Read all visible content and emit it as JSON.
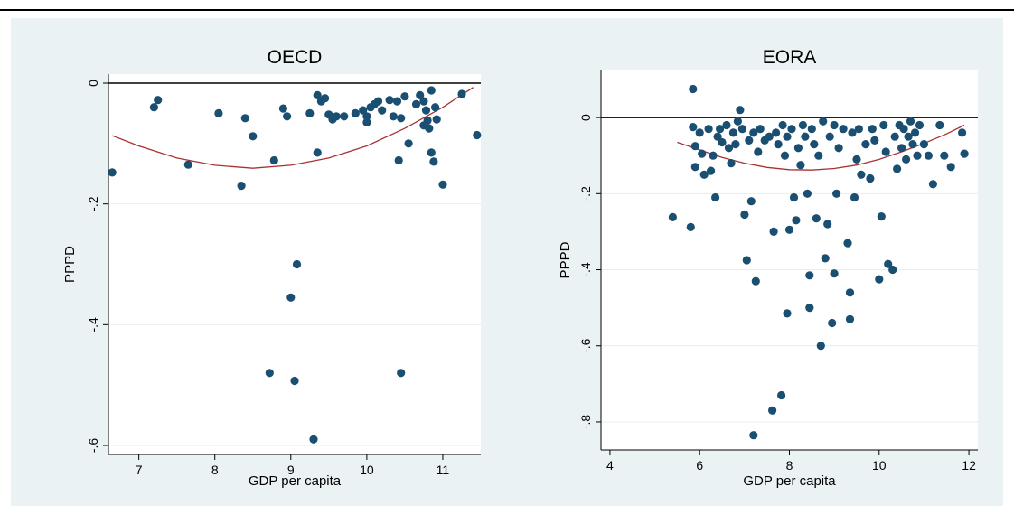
{
  "colors": {
    "marker": "#1b4f72",
    "fit": "#a83232",
    "plot_bg": "#ffffff",
    "outer_bg": "#eaf2f3",
    "grid": "#e6eef0"
  },
  "chart_data": [
    {
      "type": "scatter",
      "title": "OECD",
      "xlabel": "GDP per capita",
      "ylabel": "PPPD",
      "xlim": [
        6.6,
        11.5
      ],
      "ylim": [
        -0.6,
        0.0
      ],
      "xticks": [
        7,
        8,
        9,
        10,
        11
      ],
      "yticks": [
        0,
        -0.2,
        -0.4,
        -0.6
      ],
      "ytick_labels": [
        "0",
        "-.2",
        "-.4",
        "-.6"
      ],
      "grid": true,
      "reference_line_y": 0,
      "fit": {
        "type": "quadratic",
        "x": [
          6.65,
          7.0,
          7.5,
          8.0,
          8.5,
          9.0,
          9.5,
          10.0,
          10.5,
          11.0,
          11.4
        ],
        "y": [
          -0.087,
          -0.104,
          -0.124,
          -0.136,
          -0.141,
          -0.136,
          -0.124,
          -0.104,
          -0.075,
          -0.04,
          -0.007
        ]
      },
      "points": [
        [
          6.65,
          -0.148
        ],
        [
          7.2,
          -0.04
        ],
        [
          7.25,
          -0.028
        ],
        [
          7.65,
          -0.135
        ],
        [
          8.05,
          -0.05
        ],
        [
          8.35,
          -0.17
        ],
        [
          8.4,
          -0.058
        ],
        [
          8.5,
          -0.088
        ],
        [
          8.72,
          -0.48
        ],
        [
          8.78,
          -0.128
        ],
        [
          8.9,
          -0.042
        ],
        [
          8.95,
          -0.055
        ],
        [
          9.0,
          -0.355
        ],
        [
          9.05,
          -0.493
        ],
        [
          9.08,
          -0.3
        ],
        [
          9.25,
          -0.05
        ],
        [
          9.3,
          -0.59
        ],
        [
          9.35,
          -0.115
        ],
        [
          9.35,
          -0.02
        ],
        [
          9.4,
          -0.03
        ],
        [
          9.45,
          -0.025
        ],
        [
          9.5,
          -0.052
        ],
        [
          9.55,
          -0.06
        ],
        [
          9.6,
          -0.055
        ],
        [
          9.7,
          -0.055
        ],
        [
          9.85,
          -0.05
        ],
        [
          9.95,
          -0.045
        ],
        [
          10.0,
          -0.055
        ],
        [
          10.0,
          -0.065
        ],
        [
          10.05,
          -0.04
        ],
        [
          10.1,
          -0.035
        ],
        [
          10.15,
          -0.03
        ],
        [
          10.2,
          -0.045
        ],
        [
          10.3,
          -0.028
        ],
        [
          10.35,
          -0.055
        ],
        [
          10.4,
          -0.03
        ],
        [
          10.42,
          -0.128
        ],
        [
          10.45,
          -0.058
        ],
        [
          10.45,
          -0.48
        ],
        [
          10.5,
          -0.022
        ],
        [
          10.55,
          -0.1
        ],
        [
          10.65,
          -0.035
        ],
        [
          10.7,
          -0.02
        ],
        [
          10.75,
          -0.03
        ],
        [
          10.75,
          -0.07
        ],
        [
          10.78,
          -0.045
        ],
        [
          10.8,
          -0.062
        ],
        [
          10.82,
          -0.075
        ],
        [
          10.85,
          -0.012
        ],
        [
          10.85,
          -0.115
        ],
        [
          10.88,
          -0.13
        ],
        [
          10.9,
          -0.04
        ],
        [
          10.92,
          -0.06
        ],
        [
          11.0,
          -0.168
        ],
        [
          11.25,
          -0.018
        ],
        [
          11.45,
          -0.086
        ]
      ]
    },
    {
      "type": "scatter",
      "title": "EORA",
      "xlabel": "GDP per capita",
      "ylabel": "PPPD",
      "xlim": [
        3.8,
        12.2
      ],
      "ylim": [
        -0.85,
        0.1
      ],
      "xticks": [
        4,
        6,
        8,
        10,
        12
      ],
      "yticks": [
        0,
        -0.2,
        -0.4,
        -0.6,
        -0.8
      ],
      "ytick_labels": [
        "0",
        "-.2",
        "-.4",
        "-.6",
        "-.8"
      ],
      "grid": true,
      "reference_line_y": 0,
      "fit": {
        "type": "quadratic",
        "x": [
          5.5,
          6.0,
          6.5,
          7.0,
          7.5,
          8.0,
          8.5,
          9.0,
          9.5,
          10.0,
          10.5,
          11.0,
          11.5,
          11.9
        ],
        "y": [
          -0.065,
          -0.085,
          -0.105,
          -0.12,
          -0.131,
          -0.137,
          -0.138,
          -0.134,
          -0.125,
          -0.11,
          -0.09,
          -0.068,
          -0.043,
          -0.02
        ]
      },
      "points": [
        [
          5.85,
          0.075
        ],
        [
          5.4,
          -0.262
        ],
        [
          5.8,
          -0.288
        ],
        [
          5.85,
          -0.025
        ],
        [
          5.9,
          -0.075
        ],
        [
          5.9,
          -0.13
        ],
        [
          6.0,
          -0.04
        ],
        [
          6.05,
          -0.095
        ],
        [
          6.1,
          -0.15
        ],
        [
          6.2,
          -0.03
        ],
        [
          6.25,
          -0.14
        ],
        [
          6.3,
          -0.1
        ],
        [
          6.35,
          -0.21
        ],
        [
          6.4,
          -0.05
        ],
        [
          6.45,
          -0.03
        ],
        [
          6.5,
          -0.065
        ],
        [
          6.6,
          -0.02
        ],
        [
          6.65,
          -0.08
        ],
        [
          6.7,
          -0.12
        ],
        [
          6.75,
          -0.04
        ],
        [
          6.8,
          -0.07
        ],
        [
          6.85,
          -0.01
        ],
        [
          6.9,
          0.02
        ],
        [
          6.95,
          -0.03
        ],
        [
          7.0,
          -0.255
        ],
        [
          7.05,
          -0.375
        ],
        [
          7.1,
          -0.06
        ],
        [
          7.15,
          -0.22
        ],
        [
          7.2,
          -0.835
        ],
        [
          7.25,
          -0.43
        ],
        [
          7.2,
          -0.04
        ],
        [
          7.3,
          -0.09
        ],
        [
          7.35,
          -0.03
        ],
        [
          7.45,
          -0.06
        ],
        [
          7.55,
          -0.05
        ],
        [
          7.62,
          -0.77
        ],
        [
          7.65,
          -0.3
        ],
        [
          7.7,
          -0.04
        ],
        [
          7.75,
          -0.07
        ],
        [
          7.82,
          -0.73
        ],
        [
          7.85,
          -0.02
        ],
        [
          7.9,
          -0.1
        ],
        [
          7.95,
          -0.05
        ],
        [
          7.95,
          -0.515
        ],
        [
          8.0,
          -0.295
        ],
        [
          8.05,
          -0.03
        ],
        [
          8.1,
          -0.21
        ],
        [
          8.15,
          -0.27
        ],
        [
          8.2,
          -0.08
        ],
        [
          8.25,
          -0.125
        ],
        [
          8.3,
          -0.02
        ],
        [
          8.35,
          -0.05
        ],
        [
          8.4,
          -0.2
        ],
        [
          8.45,
          -0.415
        ],
        [
          8.45,
          -0.5
        ],
        [
          8.5,
          -0.03
        ],
        [
          8.55,
          -0.07
        ],
        [
          8.6,
          -0.265
        ],
        [
          8.65,
          -0.1
        ],
        [
          8.7,
          -0.6
        ],
        [
          8.75,
          -0.01
        ],
        [
          8.8,
          -0.37
        ],
        [
          8.85,
          -0.28
        ],
        [
          8.9,
          -0.05
        ],
        [
          8.95,
          -0.54
        ],
        [
          9.0,
          -0.02
        ],
        [
          9.0,
          -0.41
        ],
        [
          9.05,
          -0.2
        ],
        [
          9.1,
          -0.08
        ],
        [
          9.2,
          -0.03
        ],
        [
          9.3,
          -0.33
        ],
        [
          9.35,
          -0.46
        ],
        [
          9.35,
          -0.53
        ],
        [
          9.4,
          -0.04
        ],
        [
          9.45,
          -0.21
        ],
        [
          9.5,
          -0.11
        ],
        [
          9.55,
          -0.03
        ],
        [
          9.6,
          -0.15
        ],
        [
          9.7,
          -0.07
        ],
        [
          9.8,
          -0.16
        ],
        [
          9.85,
          -0.03
        ],
        [
          9.9,
          -0.06
        ],
        [
          10.0,
          -0.425
        ],
        [
          10.05,
          -0.26
        ],
        [
          10.1,
          -0.02
        ],
        [
          10.15,
          -0.09
        ],
        [
          10.2,
          -0.385
        ],
        [
          10.3,
          -0.4
        ],
        [
          10.35,
          -0.05
        ],
        [
          10.4,
          -0.135
        ],
        [
          10.45,
          -0.02
        ],
        [
          10.5,
          -0.08
        ],
        [
          10.55,
          -0.03
        ],
        [
          10.6,
          -0.11
        ],
        [
          10.65,
          -0.05
        ],
        [
          10.7,
          -0.01
        ],
        [
          10.75,
          -0.07
        ],
        [
          10.8,
          -0.04
        ],
        [
          10.85,
          -0.1
        ],
        [
          10.9,
          -0.02
        ],
        [
          11.0,
          -0.07
        ],
        [
          11.1,
          -0.1
        ],
        [
          11.2,
          -0.175
        ],
        [
          11.35,
          -0.02
        ],
        [
          11.45,
          -0.1
        ],
        [
          11.6,
          -0.13
        ],
        [
          11.85,
          -0.04
        ],
        [
          11.9,
          -0.095
        ]
      ]
    }
  ]
}
